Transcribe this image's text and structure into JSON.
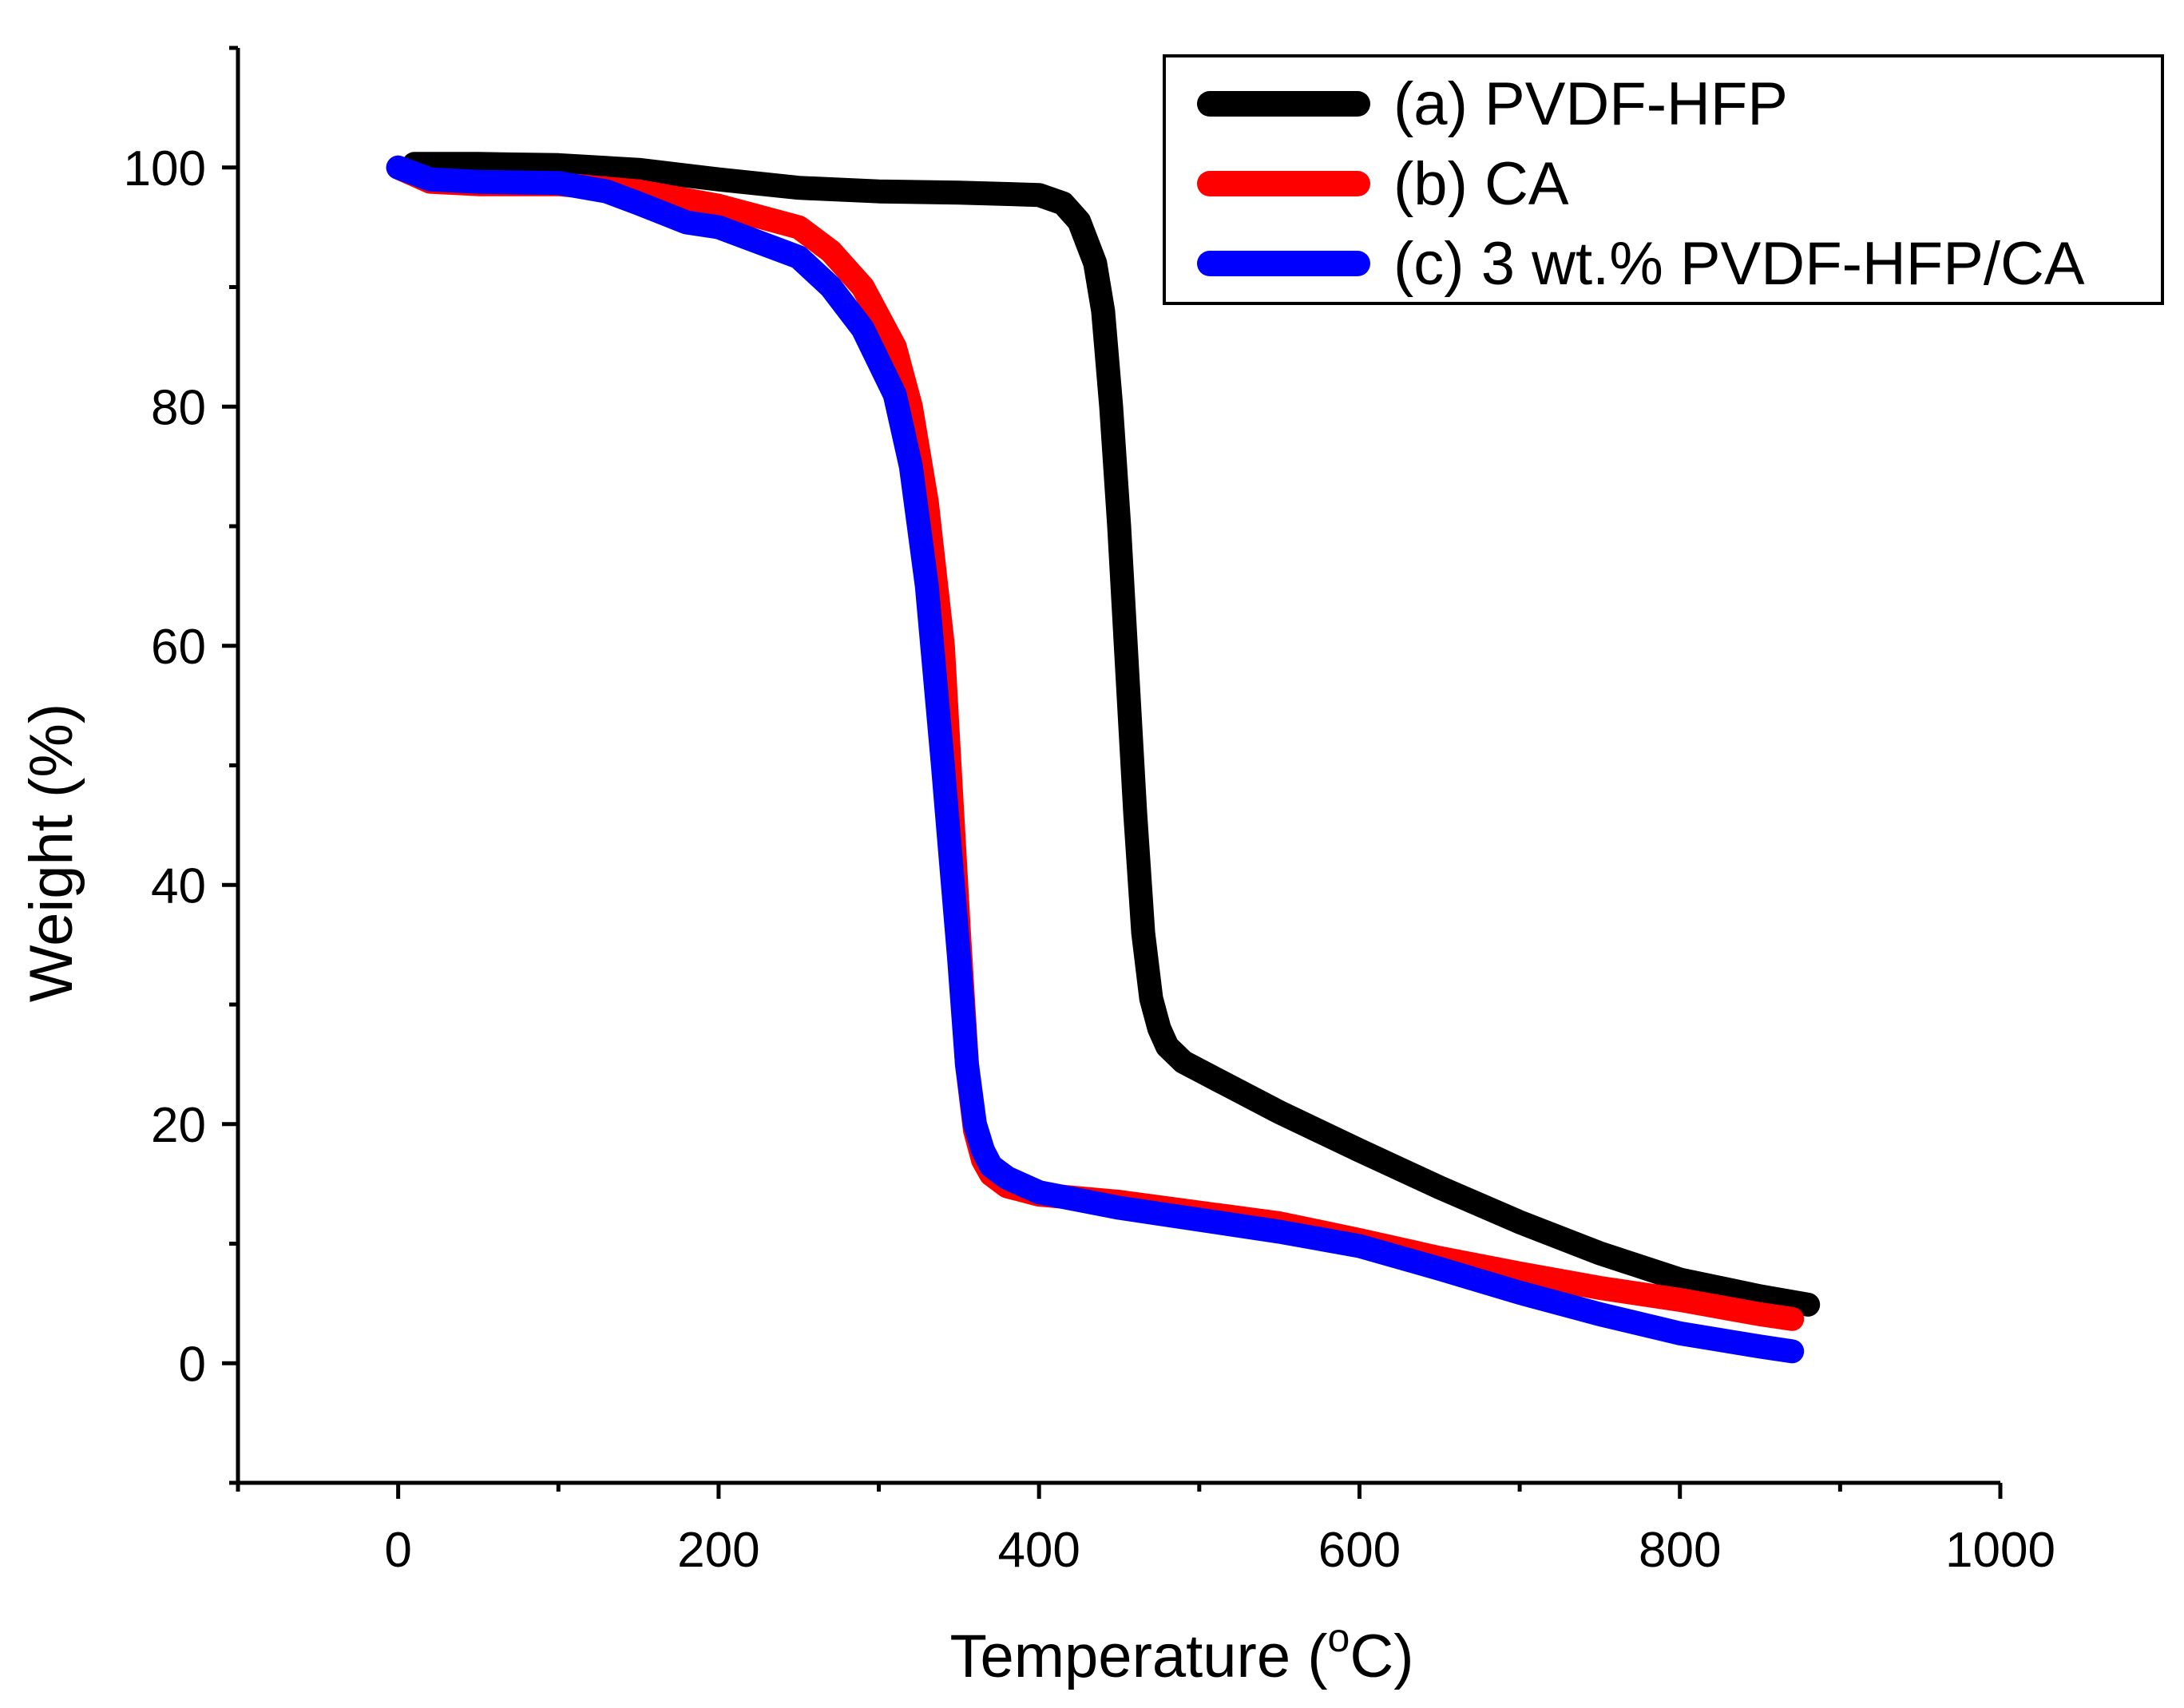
{
  "chart_data": {
    "type": "line",
    "title": "",
    "xlabel": "Temperature (",
    "xlabel_sup": "o",
    "xlabel_tail": "C)",
    "ylabel": "Weight (%)",
    "xlim": [
      -100,
      1000
    ],
    "ylim": [
      -10,
      110
    ],
    "x_ticks": [
      0,
      200,
      400,
      600,
      800,
      1000
    ],
    "x_tick_labels": [
      "0",
      "200",
      "400",
      "600",
      "800",
      "1000"
    ],
    "x_minor_ticks": [
      -100,
      100,
      300,
      500,
      700,
      900
    ],
    "y_ticks": [
      0,
      20,
      40,
      60,
      80,
      100
    ],
    "y_tick_labels": [
      "0",
      "20",
      "40",
      "60",
      "80",
      "100"
    ],
    "y_minor_ticks": [
      -10,
      10,
      30,
      50,
      70,
      90,
      110
    ],
    "grid": false,
    "legend_position": "top-right",
    "series": [
      {
        "name": "(a) PVDF-HFP",
        "color": "#000000",
        "x": [
          10,
          50,
          100,
          150,
          200,
          250,
          300,
          350,
          400,
          415,
          425,
          435,
          440,
          445,
          450,
          455,
          460,
          465,
          470,
          475,
          480,
          490,
          500,
          550,
          600,
          650,
          700,
          750,
          800,
          850,
          880
        ],
        "y": [
          100.3,
          100.3,
          100.2,
          99.8,
          99,
          98.3,
          98,
          97.9,
          97.7,
          97,
          95.5,
          92,
          88,
          80,
          70,
          58,
          46,
          36,
          30.5,
          28,
          26.5,
          25.2,
          24.5,
          21,
          17.8,
          14.7,
          11.8,
          9.2,
          7,
          5.6,
          4.9
        ]
      },
      {
        "name": "(b) CA",
        "color": "#ff0000",
        "x": [
          0,
          20,
          50,
          100,
          150,
          200,
          250,
          270,
          290,
          310,
          320,
          330,
          340,
          345,
          350,
          355,
          360,
          365,
          370,
          380,
          400,
          450,
          500,
          550,
          600,
          650,
          700,
          750,
          800,
          850,
          870
        ],
        "y": [
          100,
          98.8,
          98.6,
          98.6,
          98,
          96.8,
          95,
          93,
          90,
          85,
          80,
          72,
          60,
          48,
          36,
          25,
          19.5,
          17,
          15.8,
          14.8,
          14.1,
          13.5,
          12.6,
          11.7,
          10.3,
          8.8,
          7.5,
          6.3,
          5.3,
          4.1,
          3.7
        ]
      },
      {
        "name": "(c) 3 wt.% PVDF-HFP/CA",
        "color": "#0000ff",
        "x": [
          0,
          20,
          50,
          100,
          130,
          150,
          180,
          200,
          250,
          270,
          290,
          310,
          320,
          330,
          340,
          345,
          350,
          355,
          360,
          365,
          370,
          380,
          400,
          450,
          500,
          550,
          600,
          650,
          700,
          750,
          800,
          850,
          870
        ],
        "y": [
          100,
          99,
          98.8,
          98.7,
          98,
          97,
          95.4,
          95,
          92.5,
          90,
          86.5,
          81,
          75,
          65,
          50,
          42,
          34,
          25,
          20,
          17.8,
          16.5,
          15.5,
          14.3,
          13,
          12,
          11,
          9.8,
          7.9,
          5.9,
          4.1,
          2.5,
          1.4,
          1
        ]
      }
    ]
  }
}
